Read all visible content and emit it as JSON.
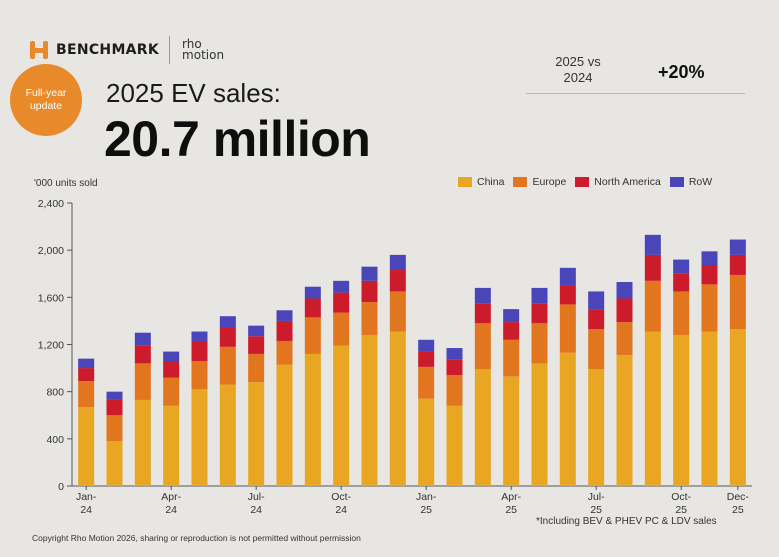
{
  "logo": {
    "benchmark": "BENCHMARK",
    "rho_line1": "rho",
    "rho_line2": "motion"
  },
  "badge": {
    "text": "Full-year\nupdate"
  },
  "header": {
    "subtitle": "2025 EV sales:",
    "title": "20.7 million"
  },
  "comparison": {
    "label": "2025 vs\n2024",
    "value": "+20%"
  },
  "footnote": "*Including BEV & PHEV PC & LDV sales",
  "copyright": "Copyright Rho Motion 2026, sharing or reproduction is not permitted without permission",
  "colors": {
    "China": "#e8a622",
    "Europe": "#e2761e",
    "North America": "#cc1b2b",
    "RoW": "#4a45b8"
  },
  "chart_data": {
    "type": "bar",
    "stacked": true,
    "ylabel": "'000 units sold",
    "ylim": [
      0,
      2400
    ],
    "yticks": [
      "0",
      "400",
      "800",
      "1,200",
      "1,600",
      "2,000",
      "2,400"
    ],
    "ytick_values": [
      0,
      400,
      800,
      1200,
      1600,
      2000,
      2400
    ],
    "legend_position": "top-right",
    "categories": [
      "Jan-24",
      "Feb-24",
      "Mar-24",
      "Apr-24",
      "May-24",
      "Jun-24",
      "Jul-24",
      "Aug-24",
      "Sep-24",
      "Oct-24",
      "Nov-24",
      "Dec-24",
      "Jan-25",
      "Feb-25",
      "Mar-25",
      "Apr-25",
      "May-25",
      "Jun-25",
      "Jul-25",
      "Aug-25",
      "Sep-25",
      "Oct-25",
      "Nov-25",
      "Dec-25"
    ],
    "xtick_labels": [
      {
        "index": 0,
        "line1": "Jan-",
        "line2": "24"
      },
      {
        "index": 3,
        "line1": "Apr-",
        "line2": "24"
      },
      {
        "index": 6,
        "line1": "Jul-",
        "line2": "24"
      },
      {
        "index": 9,
        "line1": "Oct-",
        "line2": "24"
      },
      {
        "index": 12,
        "line1": "Jan-",
        "line2": "25"
      },
      {
        "index": 15,
        "line1": "Apr-",
        "line2": "25"
      },
      {
        "index": 18,
        "line1": "Jul-",
        "line2": "25"
      },
      {
        "index": 21,
        "line1": "Oct-",
        "line2": "25"
      },
      {
        "index": 23,
        "line1": "Dec-",
        "line2": "25"
      }
    ],
    "series": [
      {
        "name": "China",
        "values": [
          670,
          380,
          730,
          680,
          820,
          860,
          880,
          1030,
          1120,
          1190,
          1280,
          1310,
          740,
          680,
          990,
          930,
          1040,
          1130,
          990,
          1110,
          1310,
          1280,
          1310,
          1330
        ]
      },
      {
        "name": "Europe",
        "values": [
          220,
          220,
          310,
          240,
          240,
          320,
          240,
          200,
          310,
          280,
          280,
          340,
          270,
          260,
          390,
          310,
          340,
          410,
          340,
          280,
          430,
          370,
          400,
          460
        ]
      },
      {
        "name": "North America",
        "values": [
          110,
          130,
          150,
          140,
          170,
          160,
          150,
          170,
          160,
          170,
          180,
          190,
          130,
          130,
          170,
          150,
          170,
          160,
          170,
          200,
          220,
          150,
          160,
          170
        ]
      },
      {
        "name": "RoW",
        "values": [
          80,
          70,
          110,
          80,
          80,
          100,
          90,
          90,
          100,
          100,
          120,
          120,
          100,
          100,
          130,
          110,
          130,
          150,
          150,
          140,
          170,
          120,
          120,
          130
        ]
      }
    ]
  }
}
